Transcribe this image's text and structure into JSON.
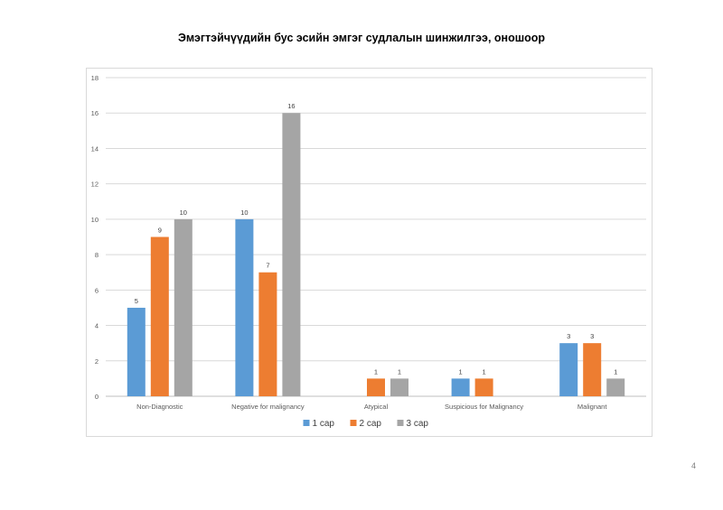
{
  "page": {
    "title": "Эмэгтэйчүүдийн бус эсийн эмгэг судлалын шинжилгээ, оношоор",
    "page_number": "4"
  },
  "chart_data": {
    "type": "bar",
    "title": "Эмэгтэйчүүдийн бус эсийн эмгэг судлалын шинжилгээ, оношоор",
    "categories": [
      "Non-Diagnostic",
      "Negative for malignancy",
      "Atypical",
      "Suspicious for Malignancy",
      "Malignant"
    ],
    "series": [
      {
        "name": "1 сар",
        "color": "#5b9bd5",
        "values": [
          5,
          10,
          null,
          1,
          3
        ]
      },
      {
        "name": "2 сар",
        "color": "#ed7d31",
        "values": [
          9,
          7,
          1,
          1,
          3
        ]
      },
      {
        "name": "3 сар",
        "color": "#a5a5a5",
        "values": [
          10,
          16,
          1,
          null,
          1
        ]
      }
    ],
    "ylim": [
      0,
      18
    ],
    "yticks": [
      0,
      2,
      4,
      6,
      8,
      10,
      12,
      14,
      16,
      18
    ],
    "grid": true,
    "legend": "bottom",
    "data_labels": true,
    "xlabel": "",
    "ylabel": ""
  }
}
